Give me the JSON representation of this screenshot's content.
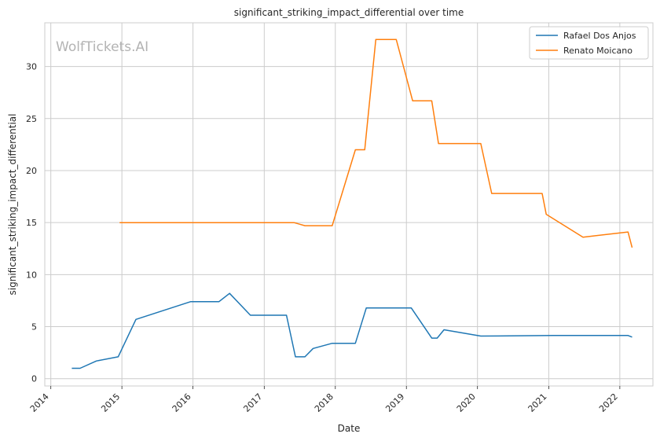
{
  "chart_data": {
    "type": "line",
    "title": "significant_striking_impact_differential over time",
    "xlabel": "Date",
    "ylabel": "significant_striking_impact_differential",
    "watermark": "WolfTickets.AI",
    "xlim": [
      "2013-12-01",
      "2022-06-20"
    ],
    "ylim": [
      -0.7,
      34.2
    ],
    "x_ticks": [
      "2014",
      "2015",
      "2016",
      "2017",
      "2018",
      "2019",
      "2020",
      "2021",
      "2022"
    ],
    "y_ticks": [
      0,
      5,
      10,
      15,
      20,
      25,
      30
    ],
    "grid": true,
    "legend_position": "top-right",
    "series": [
      {
        "name": "Rafael Dos Anjos",
        "color": "#1f77b4",
        "points": [
          [
            "2014-04-19",
            1.0
          ],
          [
            "2014-05-31",
            1.0
          ],
          [
            "2014-08-23",
            1.7
          ],
          [
            "2014-12-13",
            2.1
          ],
          [
            "2015-03-14",
            5.7
          ],
          [
            "2015-12-19",
            7.4
          ],
          [
            "2016-05-13",
            7.4
          ],
          [
            "2016-07-07",
            8.2
          ],
          [
            "2016-10-22",
            6.1
          ],
          [
            "2017-03-15",
            6.1
          ],
          [
            "2017-04-25",
            6.1
          ],
          [
            "2017-06-10",
            2.1
          ],
          [
            "2017-07-29",
            2.1
          ],
          [
            "2017-09-09",
            2.9
          ],
          [
            "2017-12-16",
            3.4
          ],
          [
            "2018-04-14",
            3.4
          ],
          [
            "2018-06-09",
            6.8
          ],
          [
            "2019-01-26",
            6.8
          ],
          [
            "2019-05-11",
            3.9
          ],
          [
            "2019-06-08",
            3.9
          ],
          [
            "2019-07-13",
            4.7
          ],
          [
            "2020-01-18",
            4.1
          ],
          [
            "2021-01-23",
            4.15
          ],
          [
            "2022-02-12",
            4.15
          ],
          [
            "2022-03-05",
            4.0
          ]
        ]
      },
      {
        "name": "Renato Moicano",
        "color": "#ff7f0e",
        "points": [
          [
            "2014-12-20",
            15.0
          ],
          [
            "2017-06-03",
            15.0
          ],
          [
            "2017-07-29",
            14.7
          ],
          [
            "2017-12-16",
            14.7
          ],
          [
            "2018-04-14",
            22.0
          ],
          [
            "2018-06-01",
            22.0
          ],
          [
            "2018-07-28",
            32.6
          ],
          [
            "2018-11-10",
            32.6
          ],
          [
            "2019-02-02",
            26.7
          ],
          [
            "2019-05-11",
            26.7
          ],
          [
            "2019-06-15",
            22.6
          ],
          [
            "2020-01-18",
            22.6
          ],
          [
            "2020-03-14",
            17.8
          ],
          [
            "2020-11-28",
            17.8
          ],
          [
            "2020-12-19",
            15.8
          ],
          [
            "2021-06-26",
            13.6
          ],
          [
            "2022-02-12",
            14.1
          ],
          [
            "2022-03-05",
            12.6
          ]
        ]
      }
    ]
  }
}
